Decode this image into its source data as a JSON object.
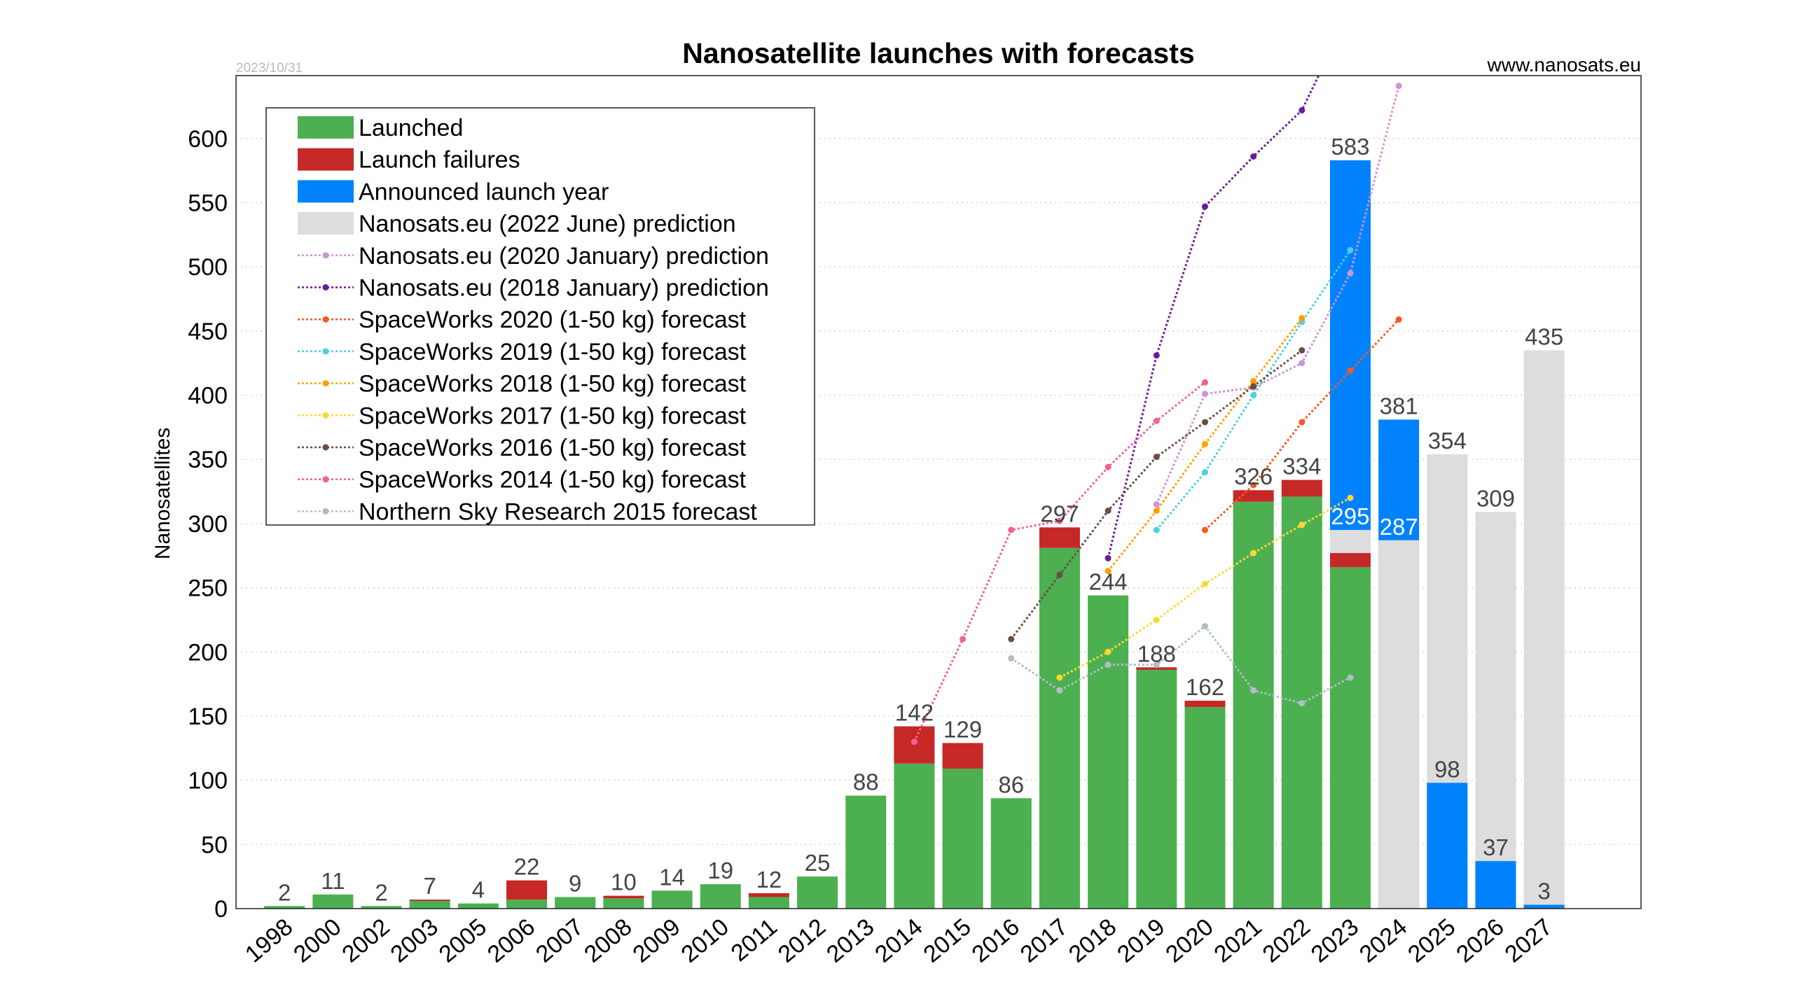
{
  "chart_data": {
    "type": "bar",
    "title": "Nanosatellite launches with forecasts",
    "date": "2023/10/31",
    "source": "www.nanosats.eu",
    "ylabel": "Nanosatellites",
    "xlabel": "",
    "ylim": [
      0,
      649
    ],
    "yticks": [
      0,
      50,
      100,
      150,
      200,
      250,
      300,
      350,
      400,
      450,
      500,
      550,
      600
    ],
    "grid": true,
    "legend_position": "top-left",
    "categories": [
      "1998",
      "2000",
      "2002",
      "2003",
      "2005",
      "2006",
      "2007",
      "2008",
      "2009",
      "2010",
      "2011",
      "2012",
      "2013",
      "2014",
      "2015",
      "2016",
      "2017",
      "2018",
      "2019",
      "2020",
      "2021",
      "2022",
      "2023",
      "2024",
      "2025",
      "2026",
      "2027"
    ],
    "bar_series": [
      {
        "name": "Launched",
        "color": "#4caf50",
        "values": [
          2,
          11,
          2,
          6,
          4,
          7,
          9,
          8,
          14,
          19,
          9,
          25,
          88,
          113,
          109,
          86,
          281,
          244,
          186,
          157,
          317,
          321,
          266,
          null,
          null,
          null,
          null
        ]
      },
      {
        "name": "Launch failures",
        "color": "#c62828",
        "values": [
          0,
          0,
          0,
          1,
          0,
          15,
          0,
          2,
          0,
          0,
          3,
          0,
          0,
          29,
          20,
          0,
          16,
          0,
          2,
          5,
          9,
          13,
          11,
          null,
          null,
          null,
          null
        ]
      },
      {
        "name": "Announced launch year",
        "color": "#0082ff",
        "values": [
          null,
          null,
          null,
          null,
          null,
          null,
          null,
          null,
          null,
          null,
          null,
          null,
          null,
          null,
          null,
          null,
          null,
          null,
          null,
          null,
          null,
          null,
          583,
          381,
          98,
          37,
          3
        ]
      },
      {
        "name": "Nanosats.eu (2022 June) prediction",
        "color": "#dddddd",
        "values": [
          null,
          null,
          null,
          null,
          null,
          null,
          null,
          null,
          null,
          null,
          null,
          null,
          null,
          null,
          null,
          null,
          null,
          null,
          null,
          null,
          null,
          null,
          295,
          287,
          354,
          309,
          435
        ]
      }
    ],
    "line_series": [
      {
        "name": "Nanosats.eu (2020 January) prediction",
        "color": "#ce93d8",
        "x": [
          "2019",
          "2020",
          "2021",
          "2022",
          "2023",
          "2024"
        ],
        "y": [
          315,
          401,
          406,
          425,
          495,
          641
        ]
      },
      {
        "name": "Nanosats.eu (2018 January) prediction",
        "color": "#6a1b9a",
        "x": [
          "2018",
          "2019",
          "2020",
          "2021",
          "2022",
          "2023"
        ],
        "y": [
          273,
          431,
          547,
          586,
          622,
          700
        ]
      },
      {
        "name": "SpaceWorks 2020 (1-50 kg) forecast",
        "color": "#ff5722",
        "x": [
          "2020",
          "2021",
          "2022",
          "2023",
          "2024"
        ],
        "y": [
          295,
          330,
          379,
          419,
          459
        ]
      },
      {
        "name": "SpaceWorks 2019 (1-50 kg) forecast",
        "color": "#4dd0e1",
        "x": [
          "2019",
          "2020",
          "2021",
          "2022",
          "2023"
        ],
        "y": [
          295,
          340,
          400,
          457,
          513
        ]
      },
      {
        "name": "SpaceWorks 2018 (1-50 kg) forecast",
        "color": "#ffa000",
        "x": [
          "2018",
          "2019",
          "2020",
          "2021",
          "2022"
        ],
        "y": [
          263,
          310,
          362,
          411,
          460
        ]
      },
      {
        "name": "SpaceWorks 2017 (1-50 kg) forecast",
        "color": "#fdd835",
        "x": [
          "2017",
          "2018",
          "2019",
          "2020",
          "2021",
          "2022",
          "2023"
        ],
        "y": [
          180,
          200,
          225,
          253,
          277,
          299,
          320
        ]
      },
      {
        "name": "SpaceWorks 2016 (1-50 kg) forecast",
        "color": "#6d4c41",
        "x": [
          "2016",
          "2017",
          "2018",
          "2019",
          "2020",
          "2021",
          "2022"
        ],
        "y": [
          210,
          260,
          310,
          352,
          379,
          407,
          435
        ]
      },
      {
        "name": "SpaceWorks 2014 (1-50 kg) forecast",
        "color": "#f06292",
        "x": [
          "2014",
          "2015",
          "2016",
          "2017",
          "2018",
          "2019",
          "2020"
        ],
        "y": [
          130,
          210,
          295,
          302,
          344,
          380,
          410
        ]
      },
      {
        "name": "Northern Sky Research 2015 forecast",
        "color": "#b0bec5",
        "x": [
          "2016",
          "2017",
          "2018",
          "2019",
          "2020",
          "2021",
          "2022",
          "2023"
        ],
        "y": [
          195,
          170,
          190,
          190,
          220,
          170,
          160,
          180
        ]
      }
    ],
    "legend": [
      "Launched",
      "Launch failures",
      "Announced launch year",
      "Nanosats.eu (2022 June) prediction",
      "Nanosats.eu (2020 January) prediction",
      "Nanosats.eu (2018 January) prediction",
      "SpaceWorks 2020 (1-50 kg) forecast",
      "SpaceWorks 2019 (1-50 kg) forecast",
      "SpaceWorks 2018 (1-50 kg) forecast",
      "SpaceWorks 2017 (1-50 kg) forecast",
      "SpaceWorks 2016 (1-50 kg) forecast",
      "SpaceWorks 2014 (1-50 kg) forecast",
      "Northern Sky Research 2015 forecast"
    ]
  }
}
